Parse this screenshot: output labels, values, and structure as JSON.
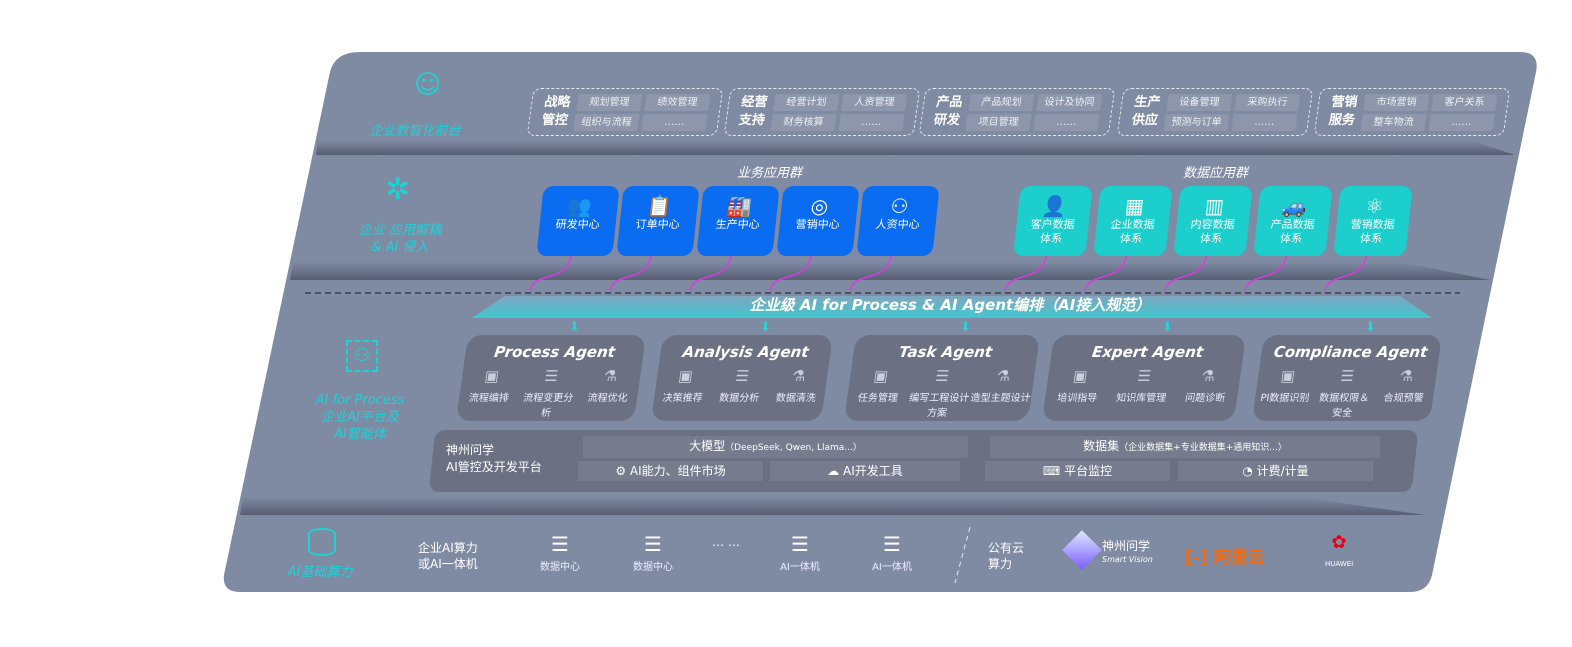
{
  "front": {
    "label": "企业数智化前台",
    "icon": "brain-head-icon",
    "groups": [
      {
        "title": "战略管控",
        "items": [
          "规划管理",
          "绩效管理",
          "组织与流程",
          "……"
        ]
      },
      {
        "title": "经营支持",
        "items": [
          "经营计划",
          "人资管理",
          "财务核算",
          "……"
        ]
      },
      {
        "title": "产品研发",
        "items": [
          "产品规划",
          "设计及协同",
          "项目管理",
          "……"
        ]
      },
      {
        "title": "生产供应",
        "items": [
          "设备管理",
          "采购执行",
          "预测与订单",
          "……"
        ]
      },
      {
        "title": "营销服务",
        "items": [
          "市场营销",
          "客户关系",
          "整车物流",
          "……"
        ]
      }
    ]
  },
  "apps": {
    "label_line1": "企业 应用解耦",
    "label_line2": "& AI 侵入",
    "business_title": "业务应用群",
    "business": [
      {
        "label": "研发中心",
        "icon": "users-icon"
      },
      {
        "label": "订单中心",
        "icon": "clipboard-icon"
      },
      {
        "label": "生产中心",
        "icon": "factory-icon"
      },
      {
        "label": "营销中心",
        "icon": "target-icon"
      },
      {
        "label": "人资中心",
        "icon": "person-icon"
      }
    ],
    "data_title": "数据应用群",
    "data": [
      {
        "label": "客户数据体系",
        "icon": "user-icon"
      },
      {
        "label": "企业数据体系",
        "icon": "building-icon"
      },
      {
        "label": "内容数据体系",
        "icon": "books-icon"
      },
      {
        "label": "产品数据体系",
        "icon": "car-icon"
      },
      {
        "label": "营销数据体系",
        "icon": "atom-icon"
      }
    ],
    "colors": {
      "business": "#0a6cf0",
      "data": "#1ccfcc",
      "arrow": "#d63ce0"
    }
  },
  "orchestration": {
    "banner": "企业级 AI for Process & AI Agent编排（AI接入规范）"
  },
  "ai": {
    "label_line1": "AI for Process",
    "label_line2": "企业AI平台及",
    "label_line3": "AI智能体",
    "agents": [
      {
        "title": "Process Agent",
        "items": [
          "流程编排",
          "流程变更分析",
          "流程优化"
        ]
      },
      {
        "title": "Analysis Agent",
        "items": [
          "决策推荐",
          "数据分析",
          "数据清洗"
        ]
      },
      {
        "title": "Task Agent",
        "items": [
          "任务管理",
          "编写工程设计方案",
          "造型主题设计"
        ]
      },
      {
        "title": "Expert Agent",
        "items": [
          "培训指导",
          "知识库管理",
          "问题诊断"
        ]
      },
      {
        "title": "Compliance Agent",
        "items": [
          "PI数据识别",
          "数据权限＆安全",
          "合规预警"
        ]
      }
    ],
    "platform": {
      "name_line1": "神州问学",
      "name_line2": "AI管控及开发平台",
      "model": "大模型",
      "model_note": "（DeepSeek, Qwen, Llama...）",
      "market": "AI能力、组件市场",
      "devtools": "AI开发工具",
      "dataset": "数据集",
      "dataset_note": "（企业数据集+专业数据集+通用知识...）",
      "monitor": "平台监控",
      "billing": "计费/计量"
    }
  },
  "infra": {
    "label": "AI基础算力",
    "enterprise_line1": "企业AI算力",
    "enterprise_line2": "或AI一体机",
    "servers": [
      "数据中心",
      "数据中心",
      "AI一体机",
      "AI一体机"
    ],
    "ellipsis": "… …",
    "public_line1": "公有云",
    "public_line2": "算力",
    "vendors": {
      "smartvision_cn": "神州问学",
      "smartvision_en": "Smart Vision",
      "aliyun": "阿里云",
      "huawei": "HUAWEI"
    },
    "colors": {
      "aliyun": "#ff6a00",
      "huawei": "#e60012"
    }
  }
}
